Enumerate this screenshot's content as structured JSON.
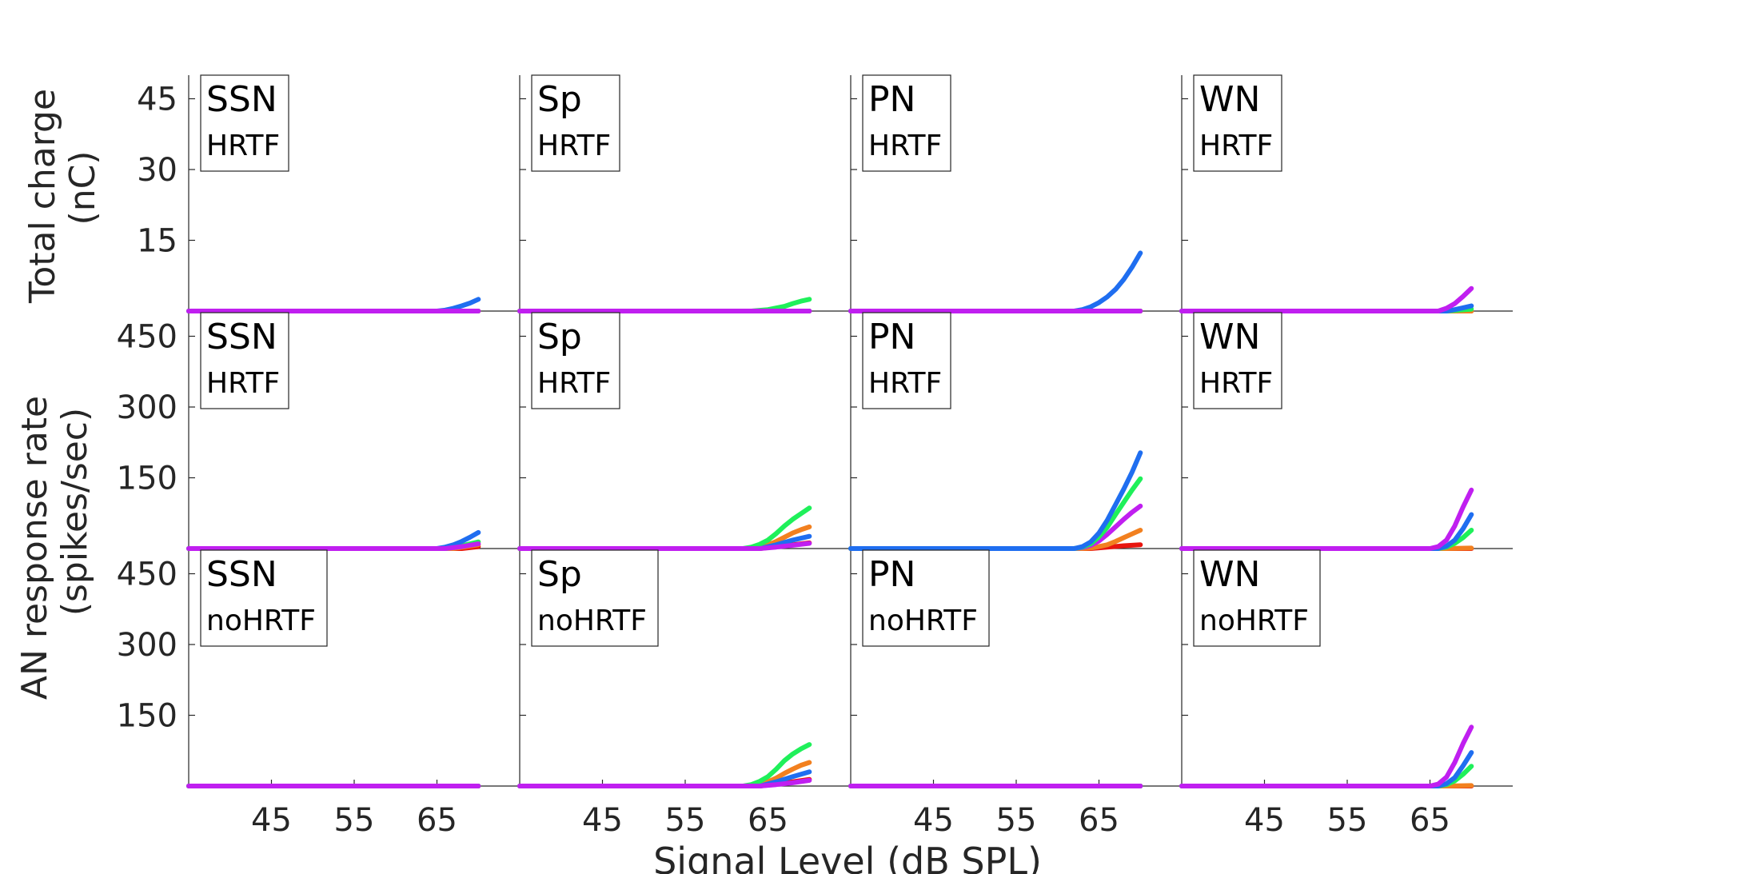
{
  "figure": {
    "xlabel": "Signal Level (dB SPL)",
    "ylabel_top": [
      "Total charge",
      "(nC)"
    ],
    "ylabel_bottom": [
      "AN response rate",
      "(spikes/sec)"
    ]
  },
  "colors": {
    "red": "#e8150f",
    "orange": "#f2801f",
    "blue": "#1f6ef0",
    "green": "#1ff05a",
    "magenta": "#c01ff0",
    "axis": "#262626"
  },
  "chart_data": [
    {
      "type": "line",
      "row": 0,
      "col": 0,
      "panel_label": [
        "SSN",
        "HRTF"
      ],
      "xlim": [
        35,
        75
      ],
      "ylim": [
        0,
        50
      ],
      "xticks": [],
      "yticks": [
        15,
        30,
        45
      ],
      "series": [
        {
          "color": "red",
          "x": [
            35,
            70
          ],
          "y": [
            0,
            0
          ]
        },
        {
          "color": "orange",
          "x": [
            35,
            70
          ],
          "y": [
            0,
            0
          ]
        },
        {
          "color": "green",
          "x": [
            35,
            70
          ],
          "y": [
            0,
            0
          ]
        },
        {
          "color": "blue",
          "x": [
            35,
            65,
            66,
            67,
            68,
            69,
            70
          ],
          "y": [
            0,
            0,
            0.2,
            0.6,
            1.1,
            1.7,
            2.5
          ]
        },
        {
          "color": "magenta",
          "x": [
            35,
            70
          ],
          "y": [
            0,
            0
          ]
        }
      ]
    },
    {
      "type": "line",
      "row": 0,
      "col": 1,
      "panel_label": [
        "Sp",
        "HRTF"
      ],
      "xlim": [
        35,
        75
      ],
      "ylim": [
        0,
        50
      ],
      "xticks": [],
      "yticks": [
        15,
        30,
        45
      ],
      "series": [
        {
          "color": "red",
          "x": [
            35,
            70
          ],
          "y": [
            0,
            0
          ]
        },
        {
          "color": "orange",
          "x": [
            35,
            70
          ],
          "y": [
            0,
            0
          ]
        },
        {
          "color": "blue",
          "x": [
            35,
            70
          ],
          "y": [
            0,
            0
          ]
        },
        {
          "color": "green",
          "x": [
            35,
            63,
            65,
            67,
            68,
            69,
            70
          ],
          "y": [
            0,
            0,
            0.3,
            1.0,
            1.6,
            2.1,
            2.5
          ]
        },
        {
          "color": "magenta",
          "x": [
            35,
            70
          ],
          "y": [
            0,
            0
          ]
        }
      ]
    },
    {
      "type": "line",
      "row": 0,
      "col": 2,
      "panel_label": [
        "PN",
        "HRTF"
      ],
      "xlim": [
        35,
        75
      ],
      "ylim": [
        0,
        50
      ],
      "xticks": [],
      "yticks": [
        15,
        30,
        45
      ],
      "series": [
        {
          "color": "red",
          "x": [
            35,
            70
          ],
          "y": [
            0,
            0
          ]
        },
        {
          "color": "orange",
          "x": [
            35,
            70
          ],
          "y": [
            0,
            0
          ]
        },
        {
          "color": "green",
          "x": [
            35,
            70
          ],
          "y": [
            0,
            0
          ]
        },
        {
          "color": "blue",
          "x": [
            35,
            62,
            63,
            64,
            65,
            66,
            67,
            68,
            69,
            70
          ],
          "y": [
            0,
            0,
            0.3,
            0.9,
            1.8,
            3.0,
            4.6,
            6.7,
            9.3,
            12.3
          ]
        },
        {
          "color": "magenta",
          "x": [
            35,
            70
          ],
          "y": [
            0,
            0
          ]
        }
      ]
    },
    {
      "type": "line",
      "row": 0,
      "col": 3,
      "panel_label": [
        "WN",
        "HRTF"
      ],
      "xlim": [
        35,
        75
      ],
      "ylim": [
        0,
        50
      ],
      "xticks": [],
      "yticks": [
        15,
        30,
        45
      ],
      "series": [
        {
          "color": "red",
          "x": [
            35,
            70
          ],
          "y": [
            0,
            0
          ]
        },
        {
          "color": "orange",
          "x": [
            35,
            70
          ],
          "y": [
            0,
            0
          ]
        },
        {
          "color": "green",
          "x": [
            35,
            67,
            70
          ],
          "y": [
            0,
            0,
            0.4
          ]
        },
        {
          "color": "blue",
          "x": [
            35,
            67,
            68,
            69,
            70
          ],
          "y": [
            0,
            0,
            0.3,
            0.7,
            1.1
          ]
        },
        {
          "color": "magenta",
          "x": [
            35,
            66,
            67,
            68,
            69,
            70
          ],
          "y": [
            0,
            0,
            0.6,
            1.6,
            3.1,
            4.8
          ]
        }
      ]
    },
    {
      "type": "line",
      "row": 1,
      "col": 0,
      "panel_label": [
        "SSN",
        "HRTF"
      ],
      "xlim": [
        35,
        75
      ],
      "ylim": [
        0,
        500
      ],
      "xticks": [],
      "yticks": [
        150,
        300,
        450
      ],
      "series": [
        {
          "color": "red",
          "x": [
            35,
            68,
            70
          ],
          "y": [
            0,
            0,
            4
          ]
        },
        {
          "color": "orange",
          "x": [
            35,
            67,
            70
          ],
          "y": [
            0,
            0,
            8
          ]
        },
        {
          "color": "green",
          "x": [
            35,
            66,
            68,
            70
          ],
          "y": [
            0,
            0,
            6,
            14
          ]
        },
        {
          "color": "blue",
          "x": [
            35,
            65,
            66,
            67,
            68,
            69,
            70
          ],
          "y": [
            0,
            0,
            3,
            8,
            15,
            24,
            34
          ]
        },
        {
          "color": "magenta",
          "x": [
            35,
            66,
            68,
            70
          ],
          "y": [
            0,
            0,
            4,
            10
          ]
        }
      ]
    },
    {
      "type": "line",
      "row": 1,
      "col": 1,
      "panel_label": [
        "Sp",
        "HRTF"
      ],
      "xlim": [
        35,
        75
      ],
      "ylim": [
        0,
        500
      ],
      "xticks": [],
      "yticks": [
        150,
        300,
        450
      ],
      "series": [
        {
          "color": "red",
          "x": [
            35,
            64,
            66,
            68,
            70
          ],
          "y": [
            0,
            0,
            4,
            8,
            12
          ]
        },
        {
          "color": "orange",
          "x": [
            35,
            63,
            64,
            65,
            66,
            67,
            68,
            69,
            70
          ],
          "y": [
            0,
            0,
            3,
            8,
            15,
            24,
            33,
            40,
            46
          ]
        },
        {
          "color": "blue",
          "x": [
            35,
            64,
            66,
            68,
            70
          ],
          "y": [
            0,
            0,
            8,
            18,
            26
          ]
        },
        {
          "color": "green",
          "x": [
            35,
            62,
            63,
            64,
            65,
            66,
            67,
            68,
            69,
            70
          ],
          "y": [
            0,
            0,
            3,
            9,
            18,
            32,
            48,
            62,
            74,
            86
          ]
        },
        {
          "color": "magenta",
          "x": [
            35,
            64,
            66,
            68,
            70
          ],
          "y": [
            0,
            0,
            3,
            7,
            11
          ]
        }
      ]
    },
    {
      "type": "line",
      "row": 1,
      "col": 2,
      "panel_label": [
        "PN",
        "HRTF"
      ],
      "xlim": [
        35,
        75
      ],
      "ylim": [
        0,
        500
      ],
      "xticks": [],
      "yticks": [
        150,
        300,
        450
      ],
      "series": [
        {
          "color": "red",
          "x": [
            35,
            64,
            66,
            68,
            70
          ],
          "y": [
            0,
            0,
            3,
            6,
            8
          ]
        },
        {
          "color": "orange",
          "x": [
            35,
            63,
            64,
            65,
            66,
            67,
            68,
            69,
            70
          ],
          "y": [
            0,
            0,
            1,
            4,
            8,
            15,
            23,
            31,
            39
          ]
        },
        {
          "color": "magenta",
          "x": [
            35,
            62,
            63,
            64,
            65,
            66,
            67,
            68,
            69,
            70
          ],
          "y": [
            0,
            0,
            2,
            7,
            16,
            30,
            46,
            62,
            77,
            90
          ]
        },
        {
          "color": "green",
          "x": [
            35,
            62,
            63,
            64,
            65,
            66,
            67,
            68,
            69,
            70
          ],
          "y": [
            0,
            0,
            3,
            10,
            25,
            45,
            72,
            98,
            124,
            148
          ]
        },
        {
          "color": "blue",
          "x": [
            35,
            62,
            63,
            64,
            65,
            66,
            67,
            68,
            69,
            70
          ],
          "y": [
            0,
            0,
            4,
            14,
            33,
            60,
            93,
            126,
            162,
            203
          ]
        }
      ]
    },
    {
      "type": "line",
      "row": 1,
      "col": 3,
      "panel_label": [
        "WN",
        "HRTF"
      ],
      "xlim": [
        35,
        75
      ],
      "ylim": [
        0,
        500
      ],
      "xticks": [],
      "yticks": [
        150,
        300,
        450
      ],
      "series": [
        {
          "color": "red",
          "x": [
            35,
            70
          ],
          "y": [
            0,
            0
          ]
        },
        {
          "color": "orange",
          "x": [
            35,
            67,
            70
          ],
          "y": [
            0,
            0,
            1
          ]
        },
        {
          "color": "green",
          "x": [
            35,
            66,
            67,
            68,
            69,
            70
          ],
          "y": [
            0,
            0,
            3,
            11,
            23,
            39
          ]
        },
        {
          "color": "blue",
          "x": [
            35,
            66,
            67,
            68,
            69,
            70
          ],
          "y": [
            0,
            0,
            5,
            18,
            42,
            72
          ]
        },
        {
          "color": "magenta",
          "x": [
            35,
            65,
            66,
            67,
            68,
            69,
            70
          ],
          "y": [
            0,
            0,
            4,
            18,
            48,
            88,
            124
          ]
        }
      ]
    },
    {
      "type": "line",
      "row": 2,
      "col": 0,
      "panel_label": [
        "SSN",
        "noHRTF"
      ],
      "xlim": [
        35,
        75
      ],
      "ylim": [
        0,
        500
      ],
      "xticks": [
        45,
        55,
        65
      ],
      "yticks": [
        150,
        300,
        450
      ],
      "series": [
        {
          "color": "red",
          "x": [
            35,
            70
          ],
          "y": [
            0,
            0
          ]
        },
        {
          "color": "orange",
          "x": [
            35,
            70
          ],
          "y": [
            0,
            0
          ]
        },
        {
          "color": "blue",
          "x": [
            35,
            70
          ],
          "y": [
            0,
            0
          ]
        },
        {
          "color": "green",
          "x": [
            35,
            70
          ],
          "y": [
            0,
            0
          ]
        },
        {
          "color": "magenta",
          "x": [
            35,
            70
          ],
          "y": [
            0,
            0
          ]
        }
      ]
    },
    {
      "type": "line",
      "row": 2,
      "col": 1,
      "panel_label": [
        "Sp",
        "noHRTF"
      ],
      "xlim": [
        35,
        75
      ],
      "ylim": [
        0,
        500
      ],
      "xticks": [
        45,
        55,
        65
      ],
      "yticks": [
        150,
        300,
        450
      ],
      "series": [
        {
          "color": "red",
          "x": [
            35,
            64,
            66,
            68,
            70
          ],
          "y": [
            0,
            0,
            4,
            9,
            14
          ]
        },
        {
          "color": "orange",
          "x": [
            35,
            63,
            64,
            65,
            66,
            67,
            68,
            69,
            70
          ],
          "y": [
            0,
            0,
            3,
            9,
            17,
            27,
            36,
            44,
            50
          ]
        },
        {
          "color": "blue",
          "x": [
            35,
            64,
            66,
            68,
            70
          ],
          "y": [
            0,
            0,
            9,
            20,
            30
          ]
        },
        {
          "color": "green",
          "x": [
            35,
            62,
            63,
            64,
            65,
            66,
            67,
            68,
            69,
            70
          ],
          "y": [
            0,
            0,
            3,
            10,
            20,
            36,
            54,
            68,
            79,
            88
          ]
        },
        {
          "color": "magenta",
          "x": [
            35,
            64,
            66,
            68,
            70
          ],
          "y": [
            0,
            0,
            3,
            7,
            12
          ]
        }
      ]
    },
    {
      "type": "line",
      "row": 2,
      "col": 2,
      "panel_label": [
        "PN",
        "noHRTF"
      ],
      "xlim": [
        35,
        75
      ],
      "ylim": [
        0,
        500
      ],
      "xticks": [
        45,
        55,
        65
      ],
      "yticks": [
        150,
        300,
        450
      ],
      "series": [
        {
          "color": "red",
          "x": [
            35,
            70
          ],
          "y": [
            0,
            0
          ]
        },
        {
          "color": "orange",
          "x": [
            35,
            70
          ],
          "y": [
            0,
            0
          ]
        },
        {
          "color": "blue",
          "x": [
            35,
            70
          ],
          "y": [
            0,
            0
          ]
        },
        {
          "color": "green",
          "x": [
            35,
            70
          ],
          "y": [
            0,
            0
          ]
        },
        {
          "color": "magenta",
          "x": [
            35,
            70
          ],
          "y": [
            0,
            0
          ]
        }
      ]
    },
    {
      "type": "line",
      "row": 2,
      "col": 3,
      "panel_label": [
        "WN",
        "noHRTF"
      ],
      "xlim": [
        35,
        75
      ],
      "ylim": [
        0,
        500
      ],
      "xticks": [
        45,
        55,
        65
      ],
      "yticks": [
        150,
        300,
        450
      ],
      "series": [
        {
          "color": "red",
          "x": [
            35,
            70
          ],
          "y": [
            0,
            0
          ]
        },
        {
          "color": "orange",
          "x": [
            35,
            67,
            70
          ],
          "y": [
            0,
            0,
            1
          ]
        },
        {
          "color": "green",
          "x": [
            35,
            66,
            67,
            68,
            69,
            70
          ],
          "y": [
            0,
            0,
            3,
            11,
            25,
            42
          ]
        },
        {
          "color": "blue",
          "x": [
            35,
            66,
            67,
            68,
            69,
            70
          ],
          "y": [
            0,
            0,
            5,
            18,
            43,
            71
          ]
        },
        {
          "color": "magenta",
          "x": [
            35,
            65,
            66,
            67,
            68,
            69,
            70
          ],
          "y": [
            0,
            0,
            4,
            19,
            50,
            90,
            125
          ]
        }
      ]
    }
  ]
}
